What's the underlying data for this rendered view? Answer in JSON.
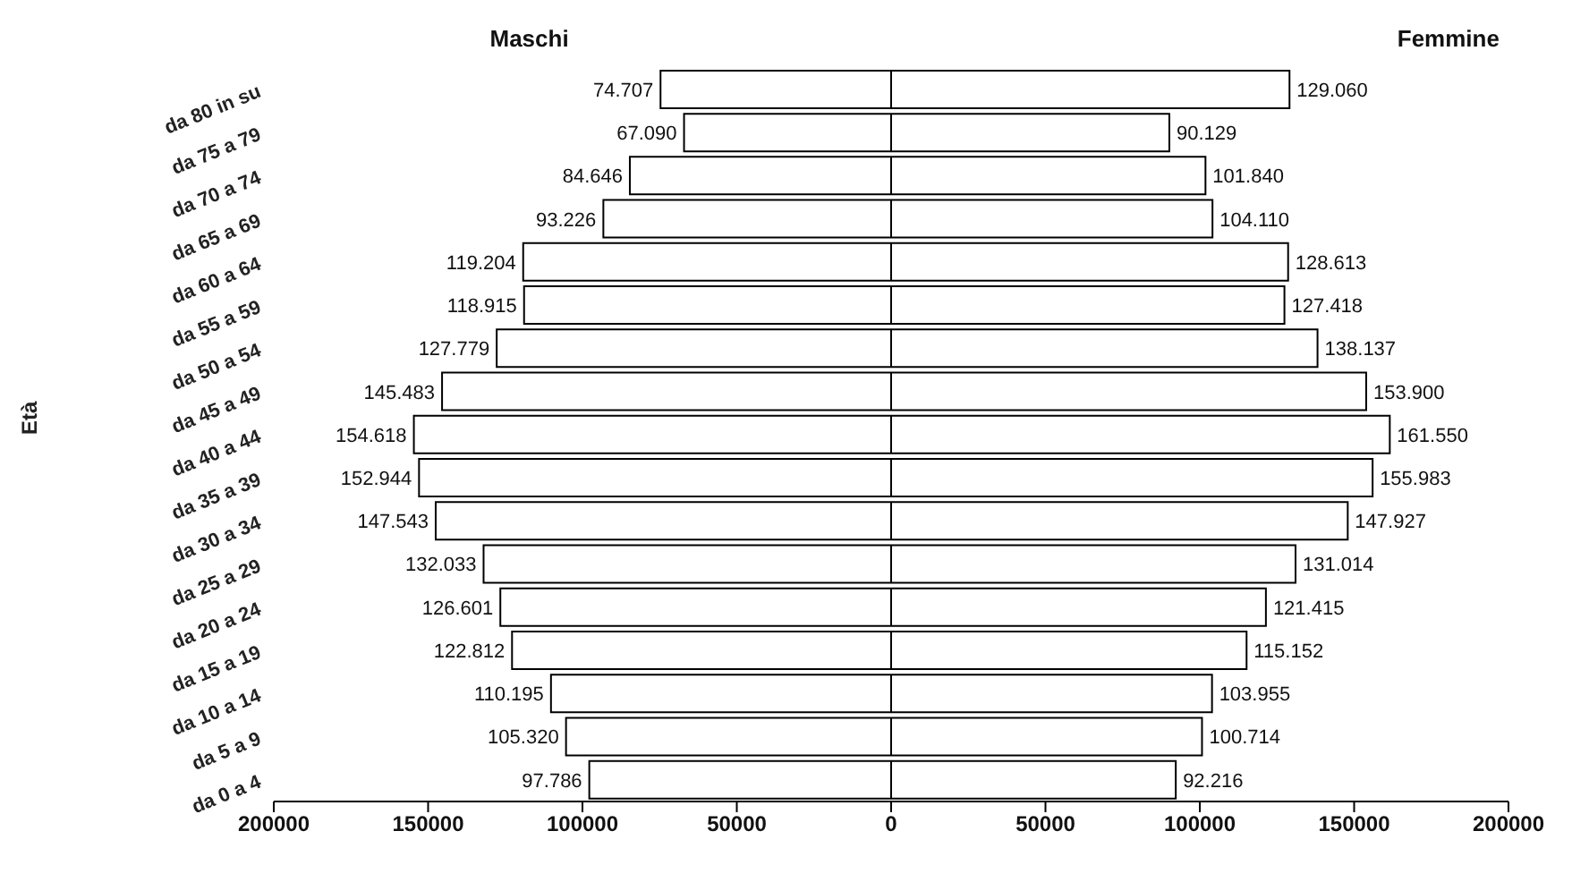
{
  "chart_data": [
    {
      "type": "bar",
      "orientation": "horizontal",
      "title": "Maschi",
      "ylabel": "Età",
      "legend": false,
      "grid": false,
      "categories": [
        "da 80 in su",
        "da 75 a 79",
        "da 70 a 74",
        "da 65 a 69",
        "da 60 a 64",
        "da 55 a 59",
        "da 50 a 54",
        "da 45 a 49",
        "da 40 a 44",
        "da 35 a 39",
        "da 30 a 34",
        "da 25 a 29",
        "da 20 a 24",
        "da 15 a 19",
        "da 10 a 14",
        "da 5 a 9",
        "da 0 a 4"
      ],
      "series": [
        {
          "color": "#ffffff",
          "values": [
            74707,
            67090,
            84646,
            93226,
            119204,
            118915,
            127779,
            145483,
            154618,
            152944,
            147543,
            132033,
            126601,
            122812,
            110195,
            105320,
            97786
          ],
          "value_labels": [
            "74.707",
            "67.090",
            "84.646",
            "93.226",
            "119.204",
            "118.915",
            "127.779",
            "145.483",
            "154.618",
            "152.944",
            "147.543",
            "132.033",
            "126.601",
            "122.812",
            "110.195",
            "105.320",
            "97.786"
          ]
        }
      ],
      "xlim": [
        200000,
        0
      ],
      "xticks": [
        200000,
        150000,
        100000,
        50000,
        0
      ]
    },
    {
      "type": "bar",
      "orientation": "horizontal",
      "title": "Femmine",
      "legend": false,
      "grid": false,
      "tick_labels": "x",
      "categories": [
        null,
        null,
        null,
        null,
        null,
        null,
        null,
        null,
        null,
        null,
        null,
        null,
        null,
        null,
        null,
        null,
        null
      ],
      "series": [
        {
          "color": "#ffffff",
          "values": [
            129060,
            90129,
            101840,
            104110,
            128613,
            127418,
            138137,
            153900,
            161550,
            155983,
            147927,
            131014,
            121415,
            115152,
            103955,
            100714,
            92216
          ],
          "value_labels": [
            "129.060",
            "90.129",
            "101.840",
            "104.110",
            "128.613",
            "127.418",
            "138.137",
            "153.900",
            "161.550",
            "155.983",
            "147.927",
            "131.014",
            "121.415",
            "115.152",
            "103.955",
            "100.714",
            "92.216"
          ]
        }
      ],
      "xlim": [
        0,
        200000
      ],
      "xticks": [
        {
          "value": 0,
          "label": null
        },
        50000,
        100000,
        150000,
        200000
      ]
    }
  ]
}
